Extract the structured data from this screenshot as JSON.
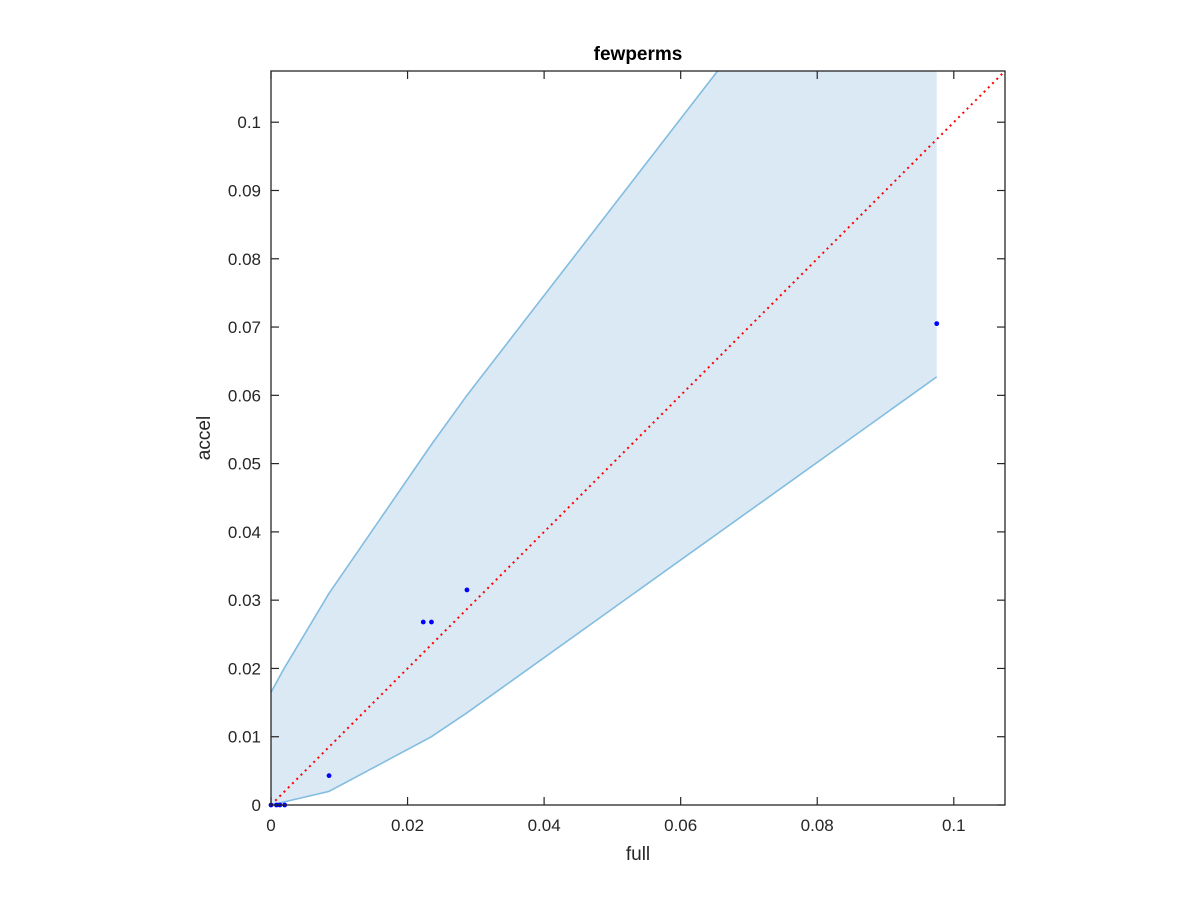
{
  "chart_data": {
    "type": "scatter",
    "title": "fewperms",
    "xlabel": "full",
    "ylabel": "accel",
    "xlim": [
      0,
      0.1075
    ],
    "ylim": [
      0,
      0.1075
    ],
    "xticks": [
      0,
      0.02,
      0.04,
      0.06,
      0.08,
      0.1
    ],
    "yticks": [
      0,
      0.01,
      0.02,
      0.03,
      0.04,
      0.05,
      0.06,
      0.07,
      0.08,
      0.09,
      0.1
    ],
    "xtick_labels": [
      "0",
      "0.02",
      "0.04",
      "0.06",
      "0.08",
      "0.1"
    ],
    "ytick_labels": [
      "0",
      "0.01",
      "0.02",
      "0.03",
      "0.04",
      "0.05",
      "0.06",
      "0.07",
      "0.08",
      "0.09",
      "0.1"
    ],
    "grid": false,
    "box": true,
    "points": {
      "x": [
        0,
        0.0008,
        0.0013,
        0.002,
        0.0085,
        0.0223,
        0.0235,
        0.0287,
        0.0975
      ],
      "y": [
        0,
        0,
        0,
        0,
        0.0043,
        0.0268,
        0.0268,
        0.0315,
        0.0705
      ]
    },
    "band": {
      "upper": {
        "x": [
          0,
          0.0018,
          0.0085,
          0.0235,
          0.0287,
          0.0654
        ],
        "y": [
          0.0165,
          0.0198,
          0.031,
          0.0528,
          0.06,
          0.1075
        ]
      },
      "lower": {
        "x": [
          0,
          0.0085,
          0.0235,
          0.0287,
          0.0975
        ],
        "y": [
          0,
          0.002,
          0.01,
          0.0135,
          0.0627
        ]
      },
      "right_edge_x": 0.0975
    },
    "reference_line": {
      "x": [
        0,
        0.1075
      ],
      "y": [
        0,
        0.1075
      ],
      "style": "dotted"
    },
    "colors": {
      "points": "#0000ff",
      "band_fill": "#dbe9f5",
      "band_edge": "#82bde0",
      "reference_line": "#ff0000",
      "axes": "#262626"
    }
  }
}
